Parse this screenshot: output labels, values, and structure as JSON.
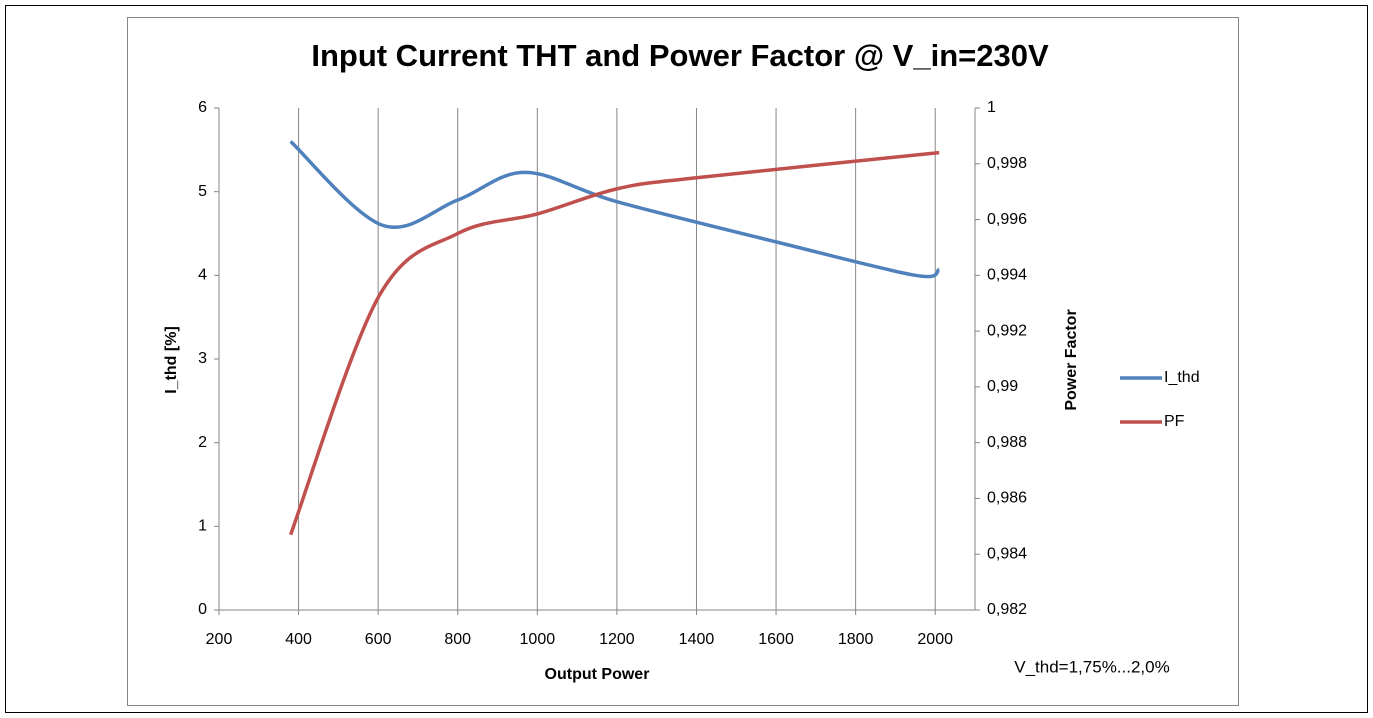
{
  "chart_data": {
    "type": "line",
    "title": "Input Current THT and Power Factor @ V_in=230V",
    "x_label": "Output Power",
    "y_label": "I_thd [%]",
    "y2_label": "Power Factor",
    "annotation": "V_thd=1,75%...2,0%",
    "xlim": [
      200,
      2100
    ],
    "xticks": [
      200,
      400,
      600,
      800,
      1000,
      1200,
      1400,
      1600,
      1800,
      2000
    ],
    "ylim": [
      0,
      6
    ],
    "yticks": [
      0,
      1,
      2,
      3,
      4,
      5,
      6
    ],
    "y2lim": [
      0.982,
      1
    ],
    "y2ticks": [
      {
        "value": 0.982,
        "label": "0,982"
      },
      {
        "value": 0.984,
        "label": "0,984"
      },
      {
        "value": 0.986,
        "label": "0,986"
      },
      {
        "value": 0.988,
        "label": "0,988"
      },
      {
        "value": 0.99,
        "label": "0,99"
      },
      {
        "value": 0.992,
        "label": "0,992"
      },
      {
        "value": 0.994,
        "label": "0,994"
      },
      {
        "value": 0.996,
        "label": "0,996"
      },
      {
        "value": 0.998,
        "label": "0,998"
      },
      1
    ],
    "grid": "x",
    "legend": "right",
    "smooth": true,
    "series": [
      {
        "name": "I_thd",
        "color": "#4f81bd",
        "x": [
          380,
          610,
          800,
          970,
          1200,
          1600,
          1950,
          2010
        ],
        "values": [
          5.6,
          4.6,
          4.9,
          5.23,
          4.88,
          4.4,
          4.0,
          4.07
        ]
      },
      {
        "name": "PF",
        "color": "#c0504d",
        "axis": "y2",
        "x": [
          380,
          600,
          800,
          1000,
          1200,
          1400,
          2010
        ],
        "values": [
          0.9847,
          0.9932,
          0.9955,
          0.9962,
          0.9971,
          0.9975,
          0.9984
        ]
      }
    ]
  }
}
